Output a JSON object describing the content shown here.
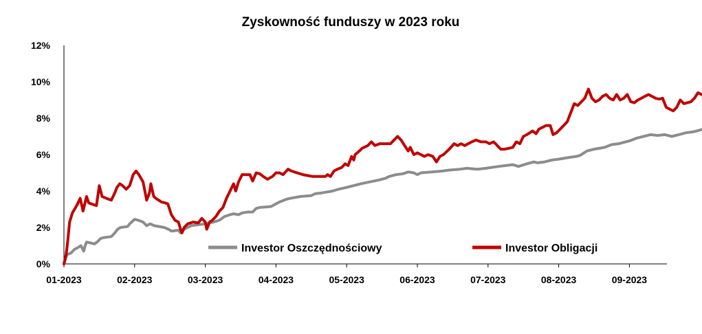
{
  "chart_data": {
    "type": "line",
    "title": "Zyskowność funduszy w 2023 roku",
    "xlabel": "",
    "ylabel": "",
    "ylim": [
      0,
      12
    ],
    "y_ticks": [
      "0%",
      "2%",
      "4%",
      "6%",
      "8%",
      "10%",
      "12%"
    ],
    "x_ticks": [
      "01-2023",
      "02-2023",
      "03-2023",
      "04-2023",
      "05-2023",
      "06-2023",
      "07-2023",
      "08-2023",
      "09-2023"
    ],
    "grid": false,
    "legend_position": "bottom-right-inside",
    "x_unit_note": "months since 01-2023",
    "series": [
      {
        "name": "Investor Oszczędnościowy",
        "color": "#8c8c8c",
        "points": [
          [
            0.0,
            0.0
          ],
          [
            0.04,
            0.5
          ],
          [
            0.1,
            0.6
          ],
          [
            0.15,
            0.8
          ],
          [
            0.2,
            0.9
          ],
          [
            0.24,
            1.0
          ],
          [
            0.28,
            0.7
          ],
          [
            0.3,
            1.0
          ],
          [
            0.32,
            1.2
          ],
          [
            0.38,
            1.15
          ],
          [
            0.43,
            1.1
          ],
          [
            0.47,
            1.2
          ],
          [
            0.52,
            1.4
          ],
          [
            0.57,
            1.45
          ],
          [
            0.67,
            1.5
          ],
          [
            0.72,
            1.7
          ],
          [
            0.76,
            1.9
          ],
          [
            0.8,
            2.0
          ],
          [
            0.9,
            2.05
          ],
          [
            0.93,
            2.2
          ],
          [
            1.0,
            2.45
          ],
          [
            1.05,
            2.4
          ],
          [
            1.12,
            2.3
          ],
          [
            1.17,
            2.1
          ],
          [
            1.22,
            2.2
          ],
          [
            1.28,
            2.1
          ],
          [
            1.42,
            2.0
          ],
          [
            1.48,
            1.9
          ],
          [
            1.52,
            1.8
          ],
          [
            1.62,
            1.85
          ],
          [
            1.65,
            1.7
          ],
          [
            1.7,
            1.9
          ],
          [
            1.8,
            2.1
          ],
          [
            2.0,
            2.2
          ],
          [
            2.05,
            2.25
          ],
          [
            2.12,
            2.3
          ],
          [
            2.2,
            2.4
          ],
          [
            2.27,
            2.6
          ],
          [
            2.35,
            2.7
          ],
          [
            2.4,
            2.75
          ],
          [
            2.47,
            2.7
          ],
          [
            2.52,
            2.8
          ],
          [
            2.6,
            2.85
          ],
          [
            2.67,
            2.85
          ],
          [
            2.72,
            3.05
          ],
          [
            2.77,
            3.1
          ],
          [
            2.93,
            3.15
          ],
          [
            3.0,
            3.3
          ],
          [
            3.05,
            3.4
          ],
          [
            3.15,
            3.55
          ],
          [
            3.2,
            3.6
          ],
          [
            3.27,
            3.65
          ],
          [
            3.35,
            3.7
          ],
          [
            3.5,
            3.75
          ],
          [
            3.55,
            3.85
          ],
          [
            3.65,
            3.9
          ],
          [
            3.8,
            4.0
          ],
          [
            3.88,
            4.1
          ],
          [
            4.0,
            4.2
          ],
          [
            4.1,
            4.3
          ],
          [
            4.2,
            4.4
          ],
          [
            4.32,
            4.5
          ],
          [
            4.45,
            4.6
          ],
          [
            4.55,
            4.7
          ],
          [
            4.6,
            4.8
          ],
          [
            4.7,
            4.9
          ],
          [
            4.8,
            4.95
          ],
          [
            4.87,
            5.05
          ],
          [
            4.95,
            5.0
          ],
          [
            5.0,
            4.9
          ],
          [
            5.05,
            5.0
          ],
          [
            5.2,
            5.05
          ],
          [
            5.35,
            5.1
          ],
          [
            5.45,
            5.15
          ],
          [
            5.6,
            5.2
          ],
          [
            5.7,
            5.25
          ],
          [
            5.85,
            5.2
          ],
          [
            5.97,
            5.25
          ],
          [
            6.05,
            5.3
          ],
          [
            6.15,
            5.35
          ],
          [
            6.25,
            5.4
          ],
          [
            6.35,
            5.45
          ],
          [
            6.43,
            5.35
          ],
          [
            6.55,
            5.5
          ],
          [
            6.65,
            5.6
          ],
          [
            6.7,
            5.55
          ],
          [
            6.8,
            5.6
          ],
          [
            6.9,
            5.7
          ],
          [
            7.0,
            5.75
          ],
          [
            7.15,
            5.85
          ],
          [
            7.25,
            5.9
          ],
          [
            7.3,
            5.95
          ],
          [
            7.4,
            6.2
          ],
          [
            7.5,
            6.3
          ],
          [
            7.65,
            6.4
          ],
          [
            7.75,
            6.55
          ],
          [
            7.85,
            6.6
          ],
          [
            8.0,
            6.75
          ],
          [
            8.1,
            6.9
          ],
          [
            8.2,
            7.0
          ],
          [
            8.3,
            7.1
          ],
          [
            8.4,
            7.05
          ],
          [
            8.5,
            7.1
          ],
          [
            8.6,
            7.0
          ],
          [
            8.7,
            7.1
          ],
          [
            8.8,
            7.2
          ],
          [
            8.9,
            7.25
          ],
          [
            9.0,
            7.35
          ],
          [
            9.1,
            7.45
          ],
          [
            9.2,
            7.5
          ],
          [
            9.35,
            7.55
          ],
          [
            9.45,
            7.62
          ],
          [
            9.55,
            7.7
          ],
          [
            9.62,
            7.72
          ]
        ]
      },
      {
        "name": "Investor Obligacji",
        "color": "#c00000",
        "points": [
          [
            0.0,
            0.0
          ],
          [
            0.03,
            0.5
          ],
          [
            0.05,
            1.1
          ],
          [
            0.08,
            2.3
          ],
          [
            0.12,
            2.8
          ],
          [
            0.18,
            3.2
          ],
          [
            0.23,
            3.6
          ],
          [
            0.27,
            2.9
          ],
          [
            0.32,
            3.7
          ],
          [
            0.35,
            3.35
          ],
          [
            0.42,
            3.25
          ],
          [
            0.46,
            3.2
          ],
          [
            0.5,
            4.3
          ],
          [
            0.54,
            3.7
          ],
          [
            0.6,
            3.6
          ],
          [
            0.67,
            3.5
          ],
          [
            0.72,
            3.9
          ],
          [
            0.75,
            4.2
          ],
          [
            0.79,
            4.4
          ],
          [
            0.83,
            4.3
          ],
          [
            0.88,
            4.1
          ],
          [
            0.93,
            4.3
          ],
          [
            0.98,
            4.9
          ],
          [
            1.02,
            5.1
          ],
          [
            1.06,
            4.9
          ],
          [
            1.12,
            4.5
          ],
          [
            1.17,
            3.5
          ],
          [
            1.21,
            3.9
          ],
          [
            1.23,
            4.4
          ],
          [
            1.27,
            3.7
          ],
          [
            1.3,
            3.6
          ],
          [
            1.38,
            3.4
          ],
          [
            1.43,
            3.35
          ],
          [
            1.47,
            3.3
          ],
          [
            1.52,
            2.7
          ],
          [
            1.57,
            2.4
          ],
          [
            1.62,
            2.3
          ],
          [
            1.65,
            1.9
          ],
          [
            1.67,
            1.7
          ],
          [
            1.7,
            2.0
          ],
          [
            1.75,
            2.2
          ],
          [
            1.83,
            2.3
          ],
          [
            1.9,
            2.25
          ],
          [
            1.95,
            2.5
          ],
          [
            2.0,
            2.3
          ],
          [
            2.02,
            1.9
          ],
          [
            2.06,
            2.3
          ],
          [
            2.1,
            2.4
          ],
          [
            2.15,
            2.6
          ],
          [
            2.2,
            2.9
          ],
          [
            2.25,
            3.1
          ],
          [
            2.3,
            3.6
          ],
          [
            2.35,
            4.0
          ],
          [
            2.4,
            4.4
          ],
          [
            2.43,
            4.0
          ],
          [
            2.47,
            4.5
          ],
          [
            2.52,
            4.9
          ],
          [
            2.57,
            4.9
          ],
          [
            2.63,
            4.9
          ],
          [
            2.67,
            4.55
          ],
          [
            2.72,
            5.0
          ],
          [
            2.77,
            4.95
          ],
          [
            2.82,
            4.8
          ],
          [
            2.88,
            4.65
          ],
          [
            2.95,
            4.8
          ],
          [
            3.0,
            5.0
          ],
          [
            3.05,
            5.0
          ],
          [
            3.1,
            4.9
          ],
          [
            3.17,
            5.2
          ],
          [
            3.22,
            5.1
          ],
          [
            3.3,
            5.0
          ],
          [
            3.38,
            4.9
          ],
          [
            3.45,
            4.85
          ],
          [
            3.52,
            4.8
          ],
          [
            3.62,
            4.8
          ],
          [
            3.7,
            4.8
          ],
          [
            3.73,
            4.9
          ],
          [
            3.77,
            4.8
          ],
          [
            3.82,
            5.1
          ],
          [
            3.87,
            5.2
          ],
          [
            3.93,
            5.3
          ],
          [
            3.98,
            5.5
          ],
          [
            4.02,
            5.4
          ],
          [
            4.07,
            5.9
          ],
          [
            4.1,
            5.7
          ],
          [
            4.12,
            6.0
          ],
          [
            4.18,
            6.2
          ],
          [
            4.22,
            6.35
          ],
          [
            4.3,
            6.5
          ],
          [
            4.35,
            6.7
          ],
          [
            4.4,
            6.5
          ],
          [
            4.47,
            6.6
          ],
          [
            4.55,
            6.6
          ],
          [
            4.62,
            6.6
          ],
          [
            4.67,
            6.8
          ],
          [
            4.72,
            7.0
          ],
          [
            4.77,
            6.8
          ],
          [
            4.82,
            6.5
          ],
          [
            4.87,
            6.2
          ],
          [
            4.9,
            6.4
          ],
          [
            4.95,
            6.0
          ],
          [
            5.0,
            6.1
          ],
          [
            5.05,
            6.0
          ],
          [
            5.1,
            5.9
          ],
          [
            5.15,
            6.0
          ],
          [
            5.22,
            5.9
          ],
          [
            5.27,
            5.6
          ],
          [
            5.32,
            5.9
          ],
          [
            5.37,
            6.0
          ],
          [
            5.45,
            6.3
          ],
          [
            5.52,
            6.6
          ],
          [
            5.57,
            6.5
          ],
          [
            5.62,
            6.6
          ],
          [
            5.67,
            6.5
          ],
          [
            5.72,
            6.6
          ],
          [
            5.77,
            6.7
          ],
          [
            5.83,
            6.8
          ],
          [
            5.9,
            6.7
          ],
          [
            5.97,
            6.7
          ],
          [
            6.02,
            6.6
          ],
          [
            6.08,
            6.7
          ],
          [
            6.13,
            6.5
          ],
          [
            6.18,
            6.3
          ],
          [
            6.23,
            6.3
          ],
          [
            6.3,
            6.35
          ],
          [
            6.35,
            6.4
          ],
          [
            6.4,
            6.7
          ],
          [
            6.45,
            6.6
          ],
          [
            6.5,
            7.0
          ],
          [
            6.55,
            7.1
          ],
          [
            6.63,
            7.3
          ],
          [
            6.68,
            7.15
          ],
          [
            6.72,
            7.4
          ],
          [
            6.77,
            7.5
          ],
          [
            6.82,
            7.6
          ],
          [
            6.88,
            7.6
          ],
          [
            6.92,
            7.1
          ],
          [
            6.97,
            7.2
          ],
          [
            7.02,
            7.4
          ],
          [
            7.07,
            7.6
          ],
          [
            7.12,
            7.8
          ],
          [
            7.18,
            8.4
          ],
          [
            7.22,
            8.8
          ],
          [
            7.27,
            8.7
          ],
          [
            7.32,
            8.9
          ],
          [
            7.37,
            9.1
          ],
          [
            7.42,
            9.6
          ],
          [
            7.47,
            9.1
          ],
          [
            7.52,
            8.9
          ],
          [
            7.57,
            9.0
          ],
          [
            7.62,
            9.2
          ],
          [
            7.67,
            9.3
          ],
          [
            7.72,
            9.1
          ],
          [
            7.77,
            9.0
          ],
          [
            7.82,
            9.3
          ],
          [
            7.87,
            9.0
          ],
          [
            7.92,
            9.1
          ],
          [
            7.97,
            9.3
          ],
          [
            8.02,
            8.9
          ],
          [
            8.07,
            8.85
          ],
          [
            8.12,
            9.0
          ],
          [
            8.17,
            9.1
          ],
          [
            8.22,
            9.2
          ],
          [
            8.27,
            9.3
          ],
          [
            8.32,
            9.2
          ],
          [
            8.37,
            9.1
          ],
          [
            8.42,
            9.05
          ],
          [
            8.47,
            9.1
          ],
          [
            8.52,
            8.6
          ],
          [
            8.57,
            8.5
          ],
          [
            8.62,
            8.4
          ],
          [
            8.67,
            8.6
          ],
          [
            8.72,
            9.0
          ],
          [
            8.77,
            8.8
          ],
          [
            8.82,
            8.85
          ],
          [
            8.87,
            8.9
          ],
          [
            8.92,
            9.1
          ],
          [
            8.97,
            9.4
          ],
          [
            9.02,
            9.3
          ],
          [
            9.07,
            9.2
          ],
          [
            9.12,
            9.2
          ],
          [
            9.17,
            9.3
          ],
          [
            9.22,
            9.2
          ],
          [
            9.27,
            9.8
          ],
          [
            9.32,
            9.85
          ],
          [
            9.37,
            9.95
          ],
          [
            9.42,
            9.7
          ],
          [
            9.47,
            9.65
          ],
          [
            9.52,
            9.75
          ],
          [
            9.57,
            9.72
          ]
        ]
      }
    ]
  }
}
